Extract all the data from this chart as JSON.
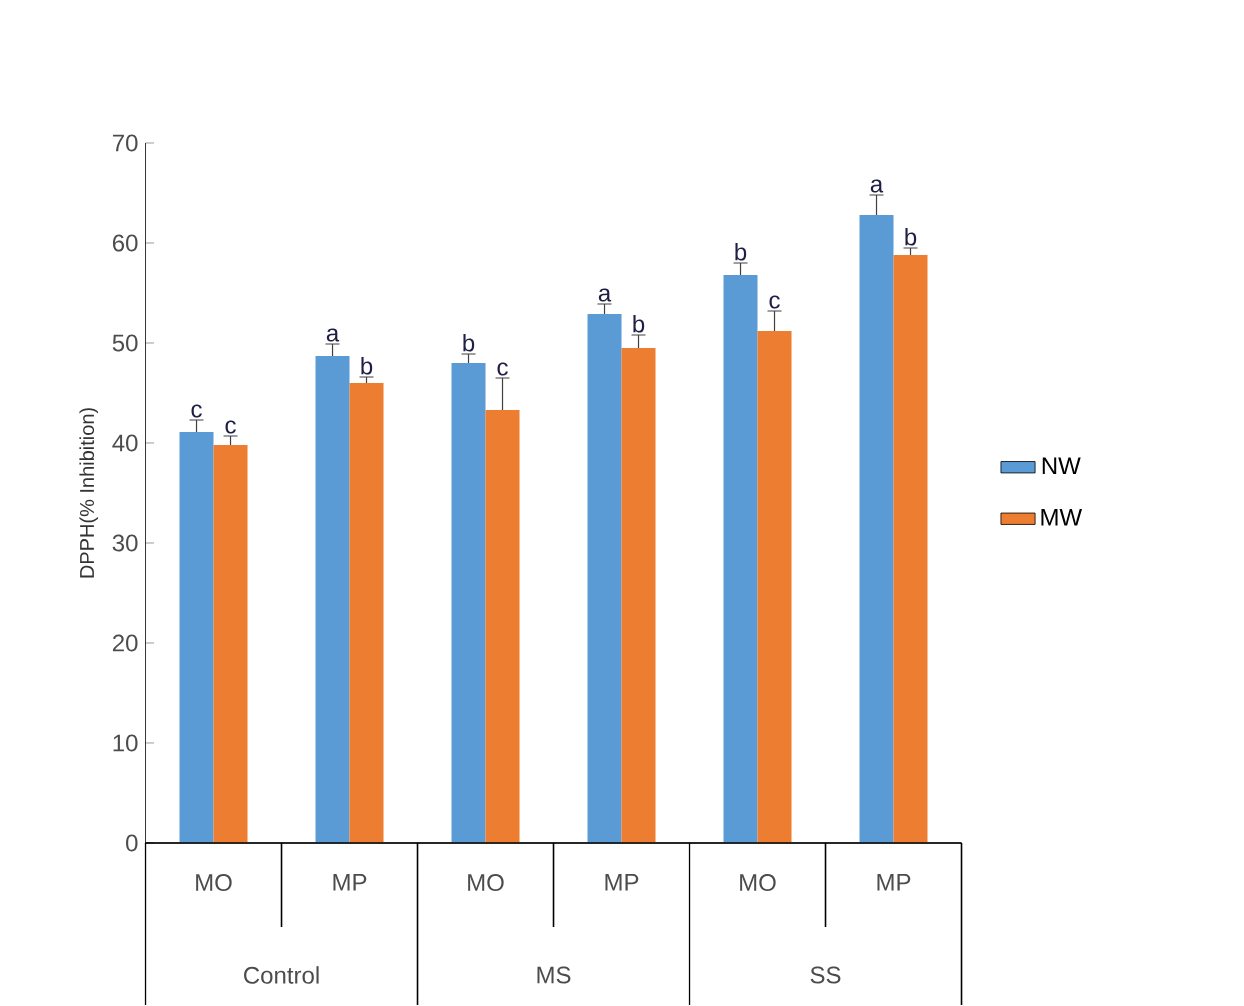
{
  "chart_data": {
    "type": "bar",
    "ylabel": "DPPH(% Inhibition)",
    "categories": [
      "MO",
      "MP",
      "MO",
      "MP",
      "MO",
      "MP"
    ],
    "annotations": [
      "Control",
      "MS",
      "SS"
    ],
    "series": [
      {
        "name": "NW",
        "color": "#5b9bd5",
        "values": [
          41.1,
          48.7,
          48.0,
          52.9,
          56.8,
          62.8
        ],
        "errors": [
          1.2,
          1.2,
          0.9,
          1.0,
          1.2,
          2.0
        ],
        "value_labels": [
          "c",
          "a",
          "b",
          "a",
          "b",
          "a"
        ]
      },
      {
        "name": "MW",
        "color": "#ed7d31",
        "values": [
          39.8,
          46.0,
          43.3,
          49.5,
          51.2,
          58.8
        ],
        "errors": [
          0.9,
          0.6,
          3.2,
          1.3,
          2.0,
          0.7
        ],
        "value_labels": [
          "c",
          "b",
          "c",
          "b",
          "c",
          "b"
        ]
      }
    ],
    "ylim": [
      0,
      70
    ],
    "yticks": [
      0,
      10,
      20,
      30,
      40,
      50,
      60,
      70
    ],
    "legend": "right",
    "grid": false
  }
}
